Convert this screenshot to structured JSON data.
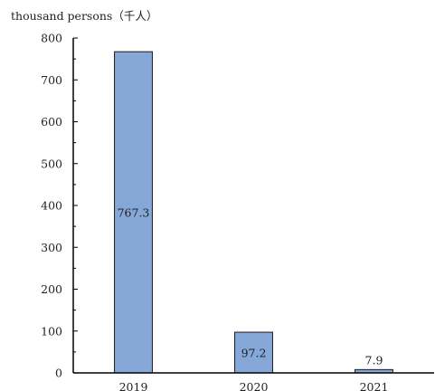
{
  "chart_data": {
    "type": "bar",
    "unit_label": "thousand persons（千人）",
    "categories": [
      "2019",
      "2020",
      "2021"
    ],
    "values": [
      767.3,
      97.2,
      7.9
    ],
    "data_labels": [
      "767.3",
      "97.2",
      "7.9"
    ],
    "ylim": [
      0,
      800
    ],
    "yticks": [
      0,
      100,
      200,
      300,
      400,
      500,
      600,
      700,
      800
    ],
    "grid": false,
    "bar_color": "#85a8d8",
    "bar_edge_color": "#1a1a1a"
  }
}
